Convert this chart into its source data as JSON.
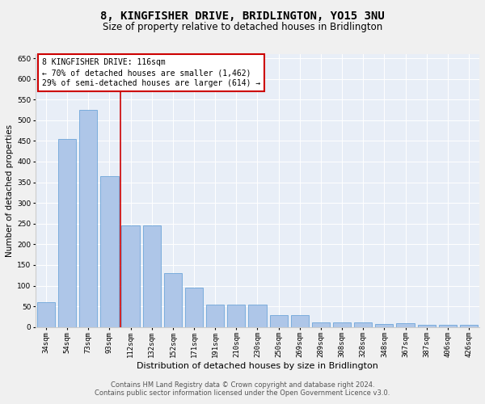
{
  "title": "8, KINGFISHER DRIVE, BRIDLINGTON, YO15 3NU",
  "subtitle": "Size of property relative to detached houses in Bridlington",
  "xlabel": "Distribution of detached houses by size in Bridlington",
  "ylabel": "Number of detached properties",
  "categories": [
    "34sqm",
    "54sqm",
    "73sqm",
    "93sqm",
    "112sqm",
    "132sqm",
    "152sqm",
    "171sqm",
    "191sqm",
    "210sqm",
    "230sqm",
    "250sqm",
    "269sqm",
    "289sqm",
    "308sqm",
    "328sqm",
    "348sqm",
    "367sqm",
    "387sqm",
    "406sqm",
    "426sqm"
  ],
  "values": [
    60,
    455,
    525,
    365,
    245,
    245,
    130,
    95,
    55,
    55,
    55,
    28,
    28,
    12,
    12,
    12,
    8,
    10,
    5,
    5,
    5
  ],
  "bar_color": "#aec6e8",
  "bar_edge_color": "#5b9bd5",
  "bg_color": "#e8eef7",
  "fig_bg_color": "#f0f0f0",
  "vline_color": "#cc0000",
  "annotation_text": "8 KINGFISHER DRIVE: 116sqm\n← 70% of detached houses are smaller (1,462)\n29% of semi-detached houses are larger (614) →",
  "annotation_box_color": "#ffffff",
  "annotation_box_edge": "#cc0000",
  "ylim": [
    0,
    660
  ],
  "yticks": [
    0,
    50,
    100,
    150,
    200,
    250,
    300,
    350,
    400,
    450,
    500,
    550,
    600,
    650
  ],
  "footer1": "Contains HM Land Registry data © Crown copyright and database right 2024.",
  "footer2": "Contains public sector information licensed under the Open Government Licence v3.0.",
  "title_fontsize": 10,
  "subtitle_fontsize": 8.5,
  "xlabel_fontsize": 8,
  "ylabel_fontsize": 7.5,
  "tick_fontsize": 6.5,
  "annotation_fontsize": 7,
  "footer_fontsize": 6
}
